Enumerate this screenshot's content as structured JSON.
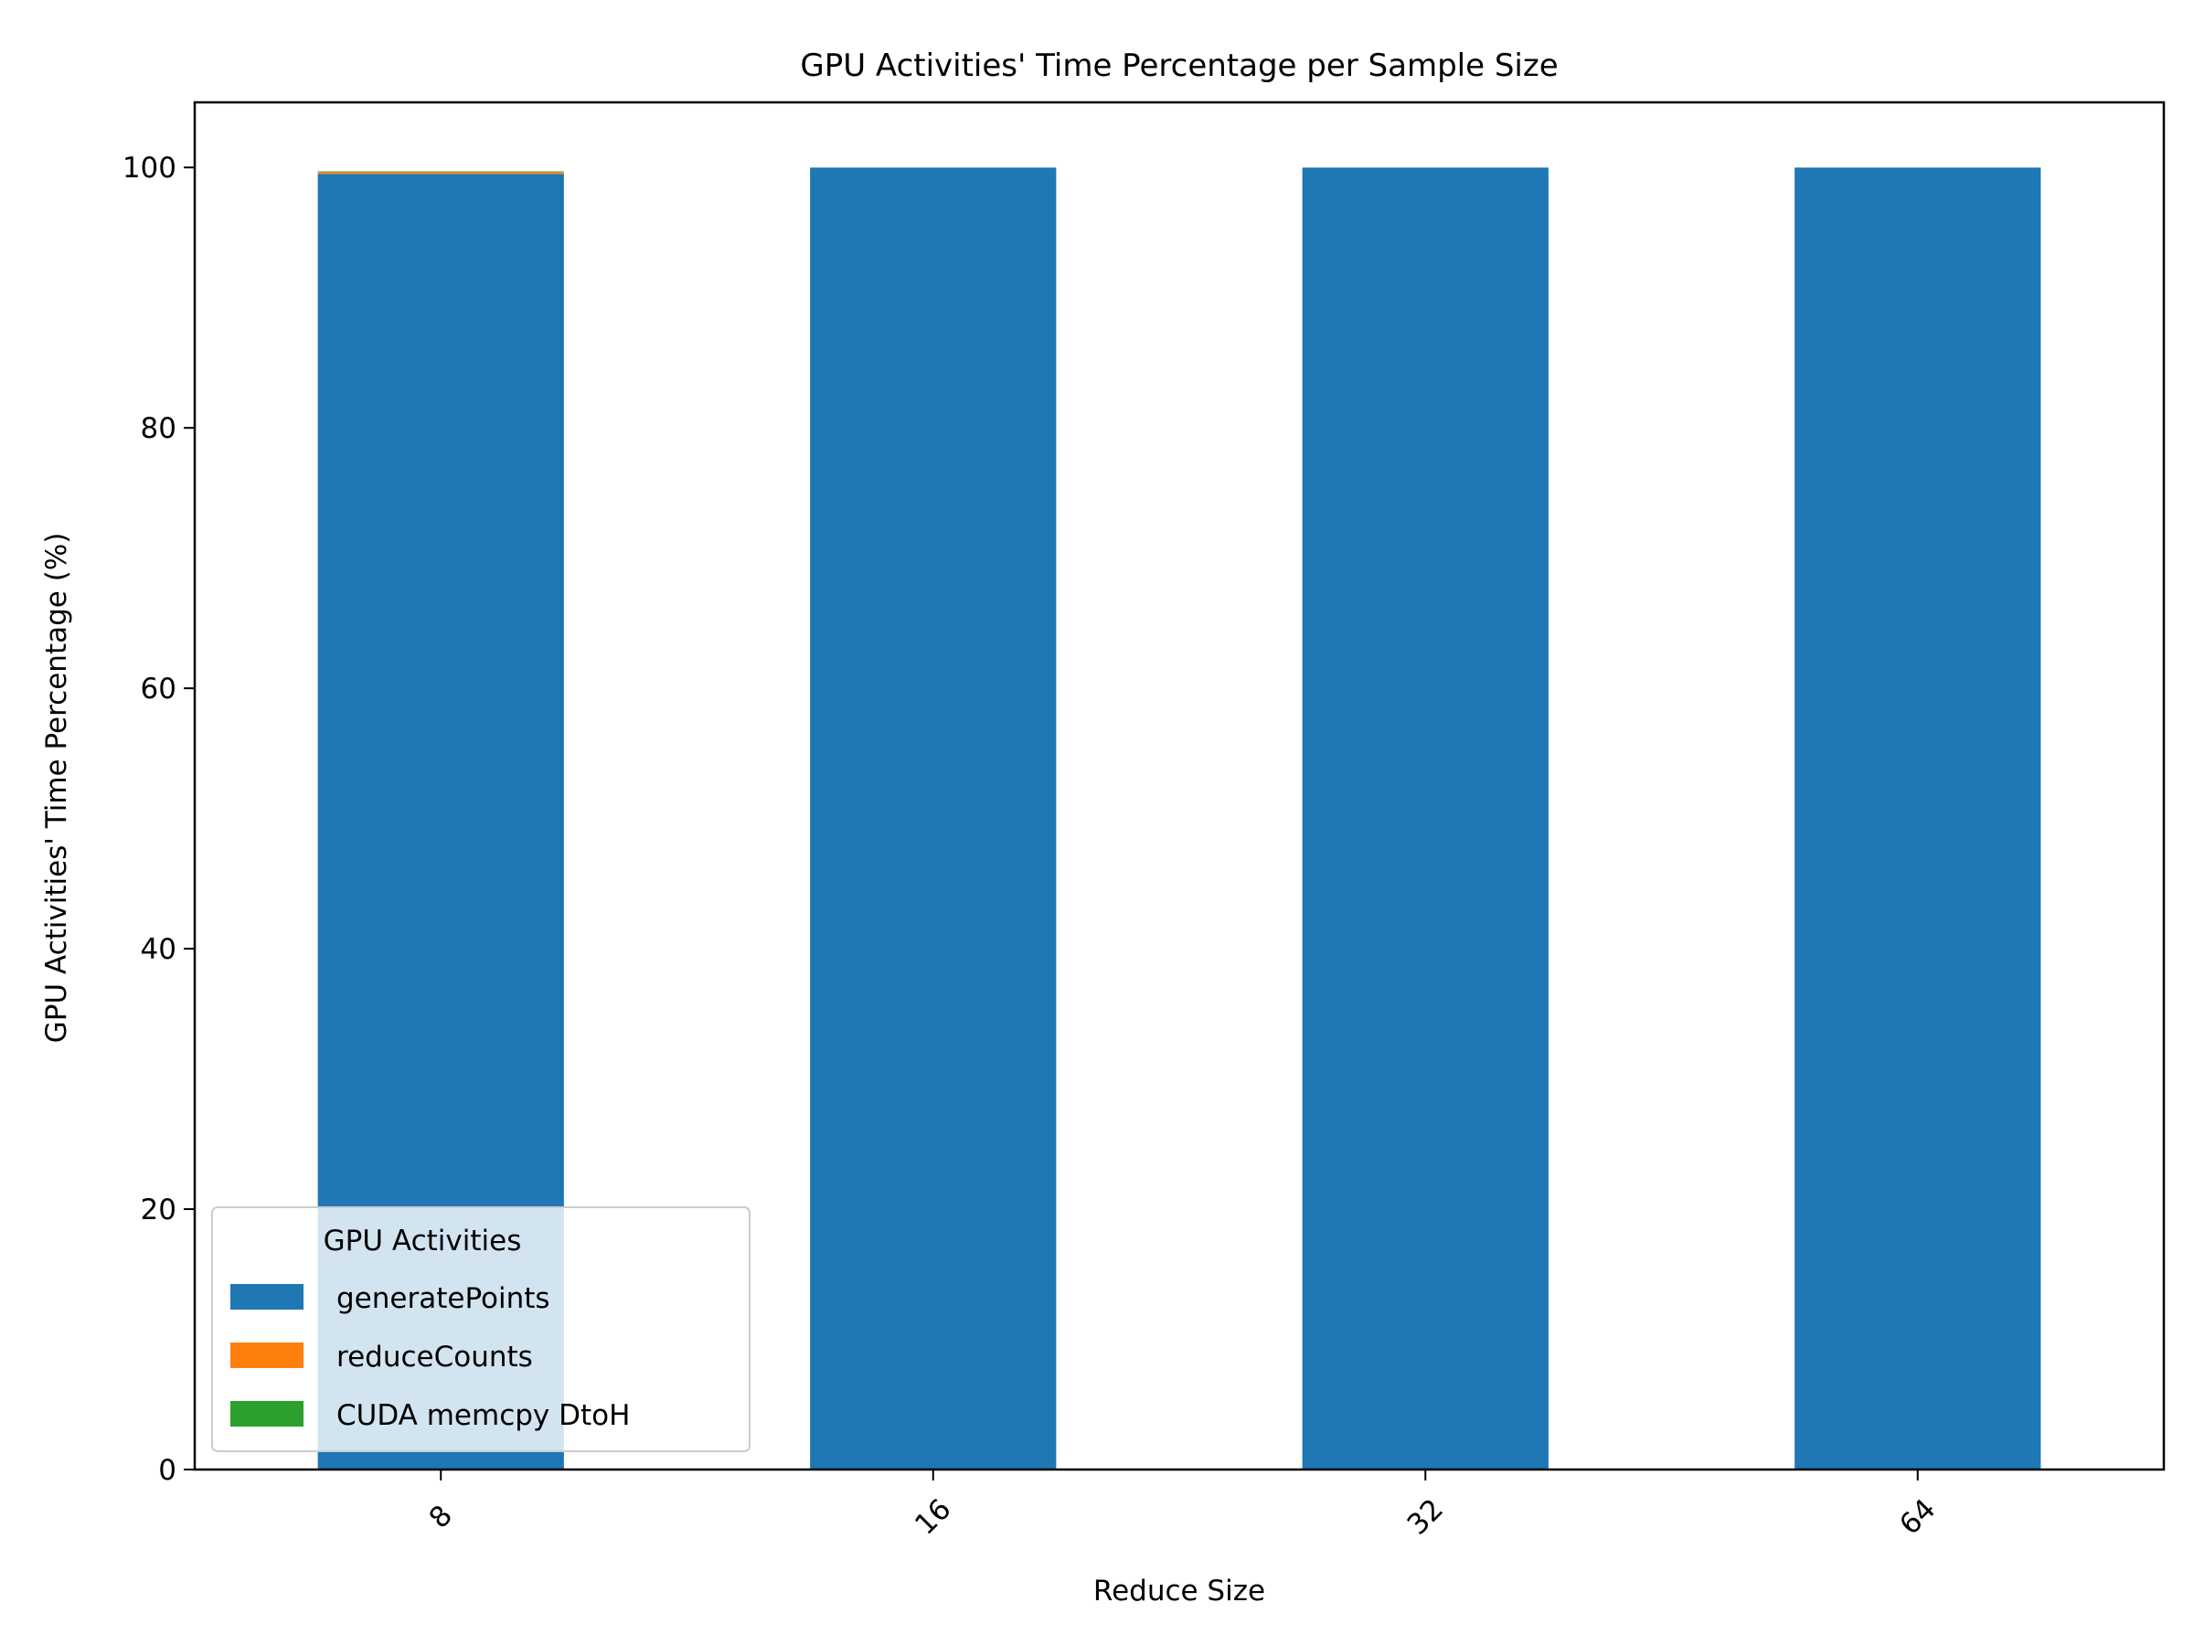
{
  "chart_data": {
    "type": "bar",
    "stacked": true,
    "title": "GPU Activities' Time Percentage per Sample Size",
    "xlabel": "Reduce Size",
    "ylabel": "GPU Activities' Time Percentage (%)",
    "categories": [
      "8",
      "16",
      "32",
      "64"
    ],
    "series": [
      {
        "name": "generatePoints",
        "color": "#1f77b4",
        "values": [
          99.5,
          99.99,
          99.99,
          99.99
        ]
      },
      {
        "name": "reduceCounts",
        "color": "#ff7f0e",
        "values": [
          0.15,
          0.0,
          0.0,
          0.0
        ]
      },
      {
        "name": "CUDA memcpy DtoH",
        "color": "#2ca02c",
        "values": [
          0.05,
          0.0,
          0.0,
          0.0
        ]
      }
    ],
    "ylim": [
      0,
      105
    ],
    "yticks": [
      0,
      20,
      40,
      60,
      80,
      100
    ],
    "grid": false,
    "legend": {
      "title": "GPU Activities",
      "position": "lower-left"
    }
  }
}
